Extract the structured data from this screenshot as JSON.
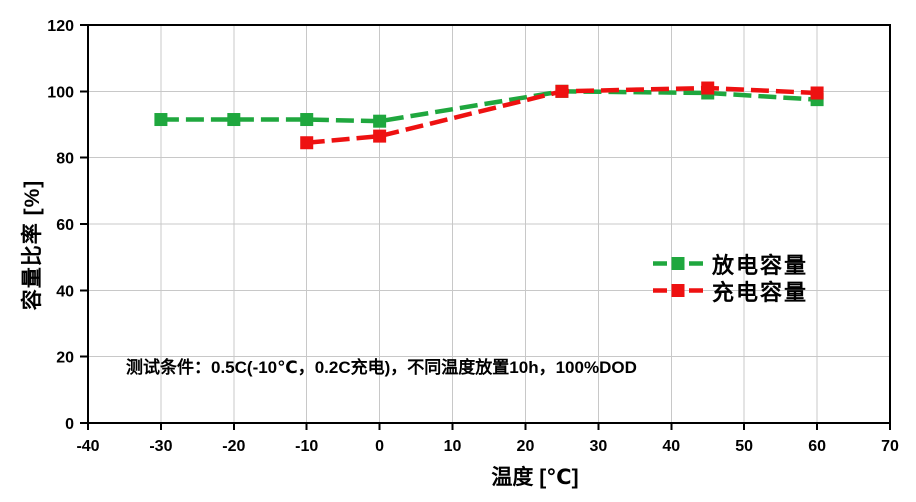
{
  "chart_data": {
    "type": "line",
    "xlabel": "温度 [℃]",
    "ylabel": "容量比率 [%]",
    "annotation": "测试条件：0.5C(-10℃，0.2C充电)，不同温度放置10h，100%DOD",
    "xlim": [
      -40,
      70
    ],
    "ylim": [
      0,
      120
    ],
    "x_ticks": [
      -40,
      -30,
      -20,
      -10,
      0,
      10,
      20,
      30,
      40,
      50,
      60,
      70
    ],
    "y_ticks": [
      0,
      20,
      40,
      60,
      80,
      100,
      120
    ],
    "grid": true,
    "legend_position": "center-right",
    "colors": {
      "grid": "#c8c8c8",
      "axis": "#000000",
      "background": "#ffffff"
    },
    "series": [
      {
        "name": "放电容量",
        "key": "discharge-capacity",
        "color": "#1fa73e",
        "x": [
          -30,
          -20,
          -10,
          0,
          25,
          45,
          60
        ],
        "y": [
          91.5,
          91.5,
          91.5,
          91,
          100,
          99.5,
          97.5
        ]
      },
      {
        "name": "充电容量",
        "key": "charge-capacity",
        "color": "#ee1111",
        "x": [
          -10,
          0,
          25,
          45,
          60
        ],
        "y": [
          84.5,
          86.5,
          100,
          101,
          99.5
        ]
      }
    ]
  }
}
